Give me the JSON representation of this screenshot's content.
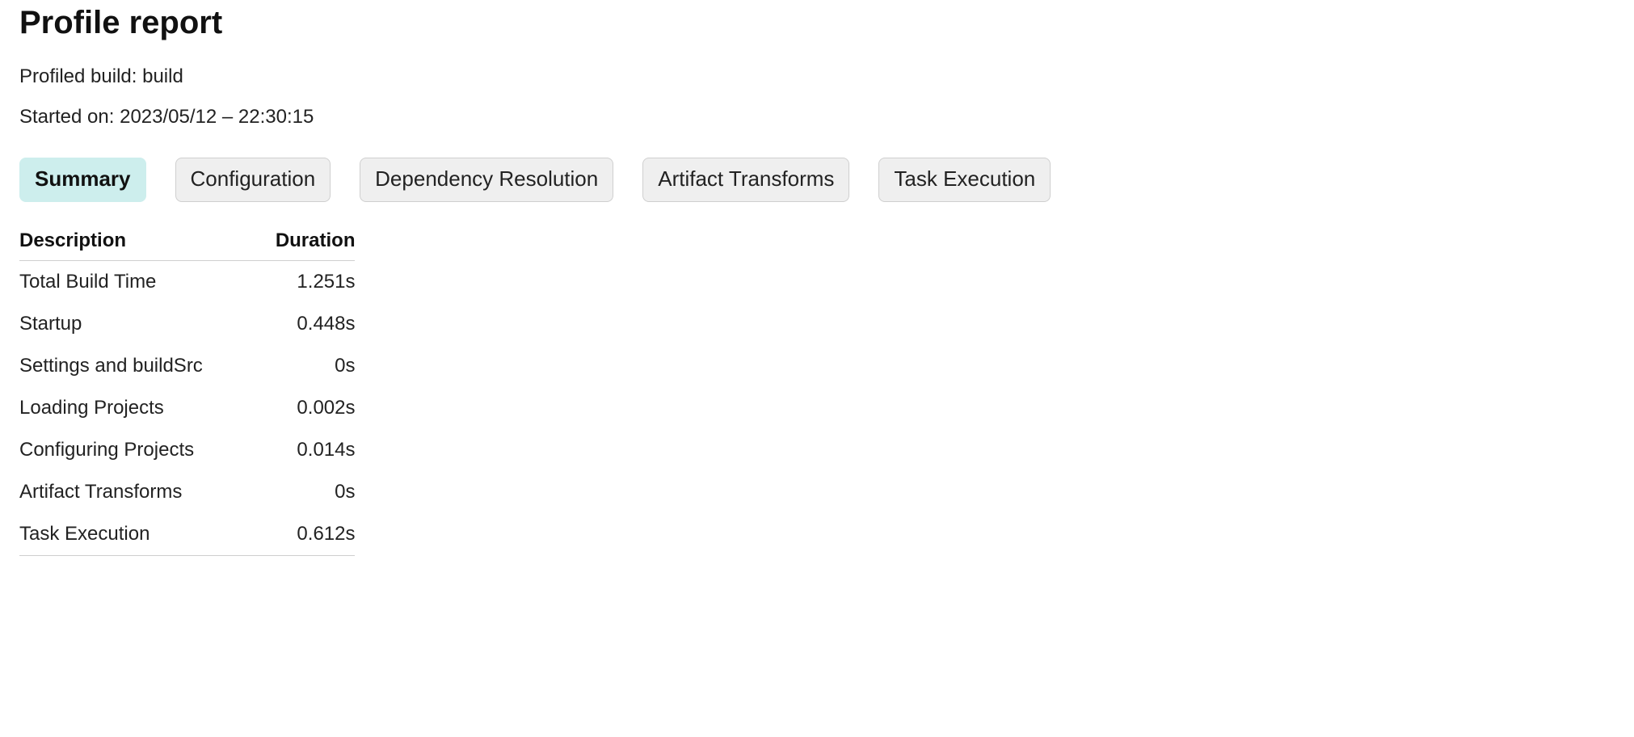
{
  "header": {
    "title": "Profile report",
    "profiled_build_label": "Profiled build:",
    "profiled_build_value": "build",
    "started_on_label": "Started on:",
    "started_on_value": "2023/05/12 – 22:30:15"
  },
  "tabs": [
    {
      "id": "summary",
      "label": "Summary",
      "active": true
    },
    {
      "id": "configuration",
      "label": "Configuration",
      "active": false
    },
    {
      "id": "dependency-resolution",
      "label": "Dependency Resolution",
      "active": false
    },
    {
      "id": "artifact-transforms",
      "label": "Artifact Transforms",
      "active": false
    },
    {
      "id": "task-execution",
      "label": "Task Execution",
      "active": false
    }
  ],
  "summary_table": {
    "columns": [
      "Description",
      "Duration"
    ],
    "rows": [
      {
        "description": "Total Build Time",
        "duration": "1.251s"
      },
      {
        "description": "Startup",
        "duration": "0.448s"
      },
      {
        "description": "Settings and buildSrc",
        "duration": "0s"
      },
      {
        "description": "Loading Projects",
        "duration": "0.002s"
      },
      {
        "description": "Configuring Projects",
        "duration": "0.014s"
      },
      {
        "description": "Artifact Transforms",
        "duration": "0s"
      },
      {
        "description": "Task Execution",
        "duration": "0.612s"
      }
    ]
  },
  "colors": {
    "active_tab_bg": "#cdeeed",
    "inactive_tab_bg": "#efefef",
    "tab_border": "#cfcfcf",
    "text": "#222222",
    "heading": "#111111",
    "rule": "#cfcfcf",
    "background": "#ffffff"
  }
}
